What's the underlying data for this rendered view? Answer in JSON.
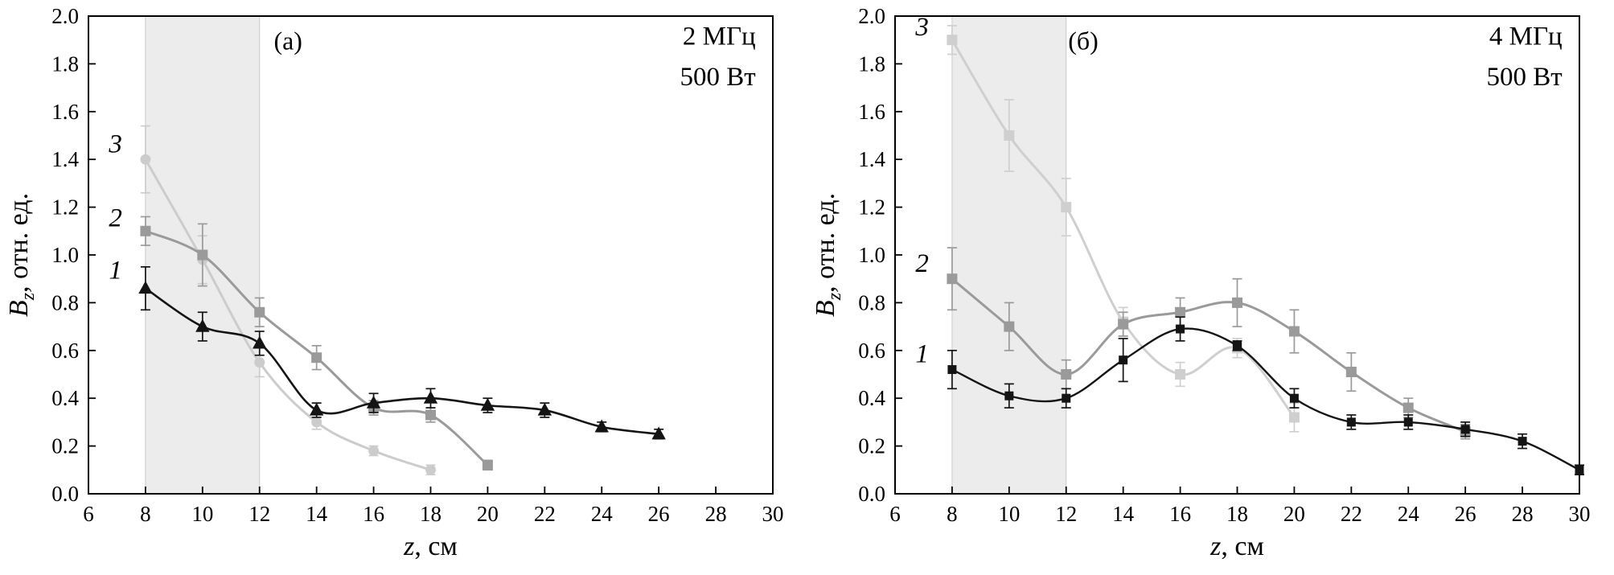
{
  "page": {
    "background": "#ffffff"
  },
  "chart_data": [
    {
      "type": "line",
      "panel_label": {
        "text": "(а)",
        "x": 13.0,
        "y": 1.86
      },
      "annotation": {
        "lines": [
          "2 МГц",
          "500 Вт"
        ],
        "x": 29.4,
        "y": 1.88,
        "line_height": 0.17
      },
      "xlabel": {
        "var": "z",
        "rest": ", см"
      },
      "ylabel": {
        "var": "B",
        "sub": "z",
        "rest": ", отн. ед."
      },
      "xlim": [
        6,
        30
      ],
      "ylim": [
        0.0,
        2.0
      ],
      "xticks": [
        6,
        8,
        10,
        12,
        14,
        16,
        18,
        20,
        22,
        24,
        26,
        28,
        30
      ],
      "yticks": [
        0.0,
        0.2,
        0.4,
        0.6,
        0.8,
        1.0,
        1.2,
        1.4,
        1.6,
        1.8,
        2.0
      ],
      "ytick_labels": [
        "0.0",
        "0.2",
        "0.4",
        "0.6",
        "0.8",
        "1.0",
        "1.2",
        "1.4",
        "1.6",
        "1.8",
        "2.0"
      ],
      "shaded_band": {
        "x0": 8,
        "x1": 12,
        "fill": "#ececec",
        "stroke": "#c9c9c9"
      },
      "grid": false,
      "legend_position": "none",
      "series": [
        {
          "name": "1",
          "marker": "triangle",
          "marker_size": 15,
          "color": "#141414",
          "line_width": 2.6,
          "label_x": 6.95,
          "label_y": 0.9,
          "x": [
            8,
            10,
            12,
            14,
            16,
            18,
            20,
            22,
            24,
            26
          ],
          "y": [
            0.86,
            0.7,
            0.63,
            0.35,
            0.38,
            0.4,
            0.37,
            0.35,
            0.28,
            0.25
          ],
          "yerr": [
            0.09,
            0.06,
            0.05,
            0.03,
            0.04,
            0.04,
            0.03,
            0.03,
            0.02,
            0.02
          ]
        },
        {
          "name": "2",
          "marker": "square",
          "marker_size": 13,
          "color": "#9a9a9a",
          "line_width": 3,
          "label_x": 6.95,
          "label_y": 1.12,
          "x": [
            8,
            10,
            12,
            14,
            16,
            18,
            20
          ],
          "y": [
            1.1,
            1.0,
            0.76,
            0.57,
            0.36,
            0.33,
            0.12
          ],
          "yerr": [
            0.06,
            0.13,
            0.06,
            0.05,
            0.03,
            0.03,
            0.02
          ]
        },
        {
          "name": "3",
          "marker": "circle",
          "marker_size": 13,
          "color": "#cccccc",
          "line_width": 3,
          "label_x": 6.95,
          "label_y": 1.43,
          "x": [
            8,
            10,
            12,
            14,
            16,
            18
          ],
          "y": [
            1.4,
            0.98,
            0.55,
            0.3,
            0.18,
            0.1
          ],
          "yerr": [
            0.14,
            0.1,
            0.06,
            0.03,
            0.02,
            0.02
          ]
        }
      ]
    },
    {
      "type": "line",
      "panel_label": {
        "text": "(б)",
        "x": 12.6,
        "y": 1.86
      },
      "annotation": {
        "lines": [
          "4 МГц",
          "500 Вт"
        ],
        "x": 29.4,
        "y": 1.88,
        "line_height": 0.17
      },
      "xlabel": {
        "var": "z",
        "rest": ", см"
      },
      "ylabel": {
        "var": "B",
        "sub": "z",
        "rest": ", отн. ед."
      },
      "xlim": [
        6,
        30
      ],
      "ylim": [
        0.0,
        2.0
      ],
      "xticks": [
        6,
        8,
        10,
        12,
        14,
        16,
        18,
        20,
        22,
        24,
        26,
        28,
        30
      ],
      "yticks": [
        0.0,
        0.2,
        0.4,
        0.6,
        0.8,
        1.0,
        1.2,
        1.4,
        1.6,
        1.8,
        2.0
      ],
      "ytick_labels": [
        "0.0",
        "0.2",
        "0.4",
        "0.6",
        "0.8",
        "1.0",
        "1.2",
        "1.4",
        "1.6",
        "1.8",
        "2.0"
      ],
      "shaded_band": {
        "x0": 8,
        "x1": 12,
        "fill": "#ececec",
        "stroke": "#c9c9c9"
      },
      "grid": false,
      "legend_position": "none",
      "series": [
        {
          "name": "1",
          "marker": "square",
          "marker_size": 11,
          "color": "#141414",
          "line_width": 2.4,
          "label_x": 6.95,
          "label_y": 0.55,
          "x": [
            8,
            10,
            12,
            14,
            16,
            18,
            20,
            22,
            24,
            26,
            28,
            30
          ],
          "y": [
            0.52,
            0.41,
            0.4,
            0.56,
            0.69,
            0.62,
            0.4,
            0.3,
            0.3,
            0.27,
            0.22,
            0.1
          ],
          "yerr": [
            0.08,
            0.05,
            0.04,
            0.09,
            0.05,
            0.02,
            0.04,
            0.03,
            0.03,
            0.03,
            0.03,
            0.02
          ]
        },
        {
          "name": "2",
          "marker": "square",
          "marker_size": 13,
          "color": "#9a9a9a",
          "line_width": 3,
          "label_x": 6.95,
          "label_y": 0.93,
          "x": [
            8,
            10,
            12,
            14,
            16,
            18,
            20,
            22,
            24,
            26
          ],
          "y": [
            0.9,
            0.7,
            0.5,
            0.71,
            0.76,
            0.8,
            0.68,
            0.51,
            0.36,
            0.26
          ],
          "yerr": [
            0.13,
            0.1,
            0.06,
            0.05,
            0.06,
            0.1,
            0.09,
            0.08,
            0.04,
            0.03
          ]
        },
        {
          "name": "3",
          "marker": "square",
          "marker_size": 13,
          "color": "#cfcfcf",
          "line_width": 3,
          "label_x": 6.95,
          "label_y": 1.92,
          "x": [
            8,
            10,
            12,
            14,
            16,
            18,
            20
          ],
          "y": [
            1.9,
            1.5,
            1.2,
            0.72,
            0.5,
            0.61,
            0.32
          ],
          "yerr": [
            0.06,
            0.15,
            0.12,
            0.06,
            0.05,
            0.04,
            0.06
          ]
        }
      ]
    }
  ]
}
